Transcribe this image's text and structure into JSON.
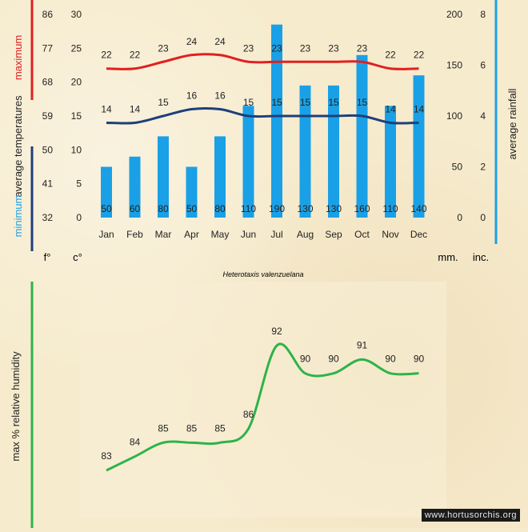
{
  "species": "Heterotaxis valenzuelana",
  "credit": "www.hortusorchis.org",
  "colors": {
    "max": "#e02020",
    "min": "#1e3f7a",
    "rain": "#1aa0e6",
    "humidity": "#2db34a",
    "text": "#222222"
  },
  "left_labels": {
    "max_word": "maximum",
    "avg_word": "average  temperatures",
    "min_word": "minimum",
    "unit_f": "f°",
    "unit_c": "c°"
  },
  "right_labels": {
    "axis_title": "average  rainfall",
    "unit_mm": "mm.",
    "unit_inc": "inc."
  },
  "humidity_labels": {
    "axis_title": "max %  relative humidity"
  },
  "chart_data": [
    {
      "type": "bar",
      "title": "Heterotaxis valenzuelana",
      "categories": [
        "Jan",
        "Feb",
        "Mar",
        "Apr",
        "May",
        "Jun",
        "Jul",
        "Aug",
        "Sep",
        "Oct",
        "Nov",
        "Dec"
      ],
      "series": [
        {
          "name": "average rainfall (mm)",
          "kind": "bar",
          "axis": "rain_mm",
          "values": [
            50,
            60,
            80,
            50,
            80,
            110,
            190,
            130,
            130,
            160,
            110,
            140
          ]
        },
        {
          "name": "maximum average temperature (°C)",
          "kind": "line",
          "axis": "temp_c",
          "values": [
            22,
            22,
            23,
            24,
            24,
            23,
            23,
            23,
            23,
            23,
            22,
            22
          ]
        },
        {
          "name": "minimum average temperature (°C)",
          "kind": "line",
          "axis": "temp_c",
          "values": [
            14,
            14,
            15,
            16,
            16,
            15,
            15,
            15,
            15,
            15,
            14,
            14
          ]
        }
      ],
      "axes": {
        "temp_f": {
          "ylim": [
            32,
            86
          ],
          "ticks": [
            86,
            77,
            68,
            59,
            50,
            41,
            32
          ]
        },
        "temp_c": {
          "ylim": [
            0,
            30
          ],
          "ticks": [
            30,
            25,
            20,
            15,
            10,
            5,
            0
          ]
        },
        "rain_mm": {
          "ylim": [
            0,
            200
          ],
          "ticks": [
            200,
            150,
            100,
            50,
            0
          ]
        },
        "rain_in": {
          "ylim": [
            0,
            8
          ],
          "ticks": [
            8,
            6,
            4,
            2,
            0
          ]
        }
      }
    },
    {
      "type": "line",
      "title": "",
      "ylabel": "max % relative humidity",
      "categories": [
        "Jan",
        "Feb",
        "Mar",
        "Apr",
        "May",
        "Jun",
        "Jul",
        "Aug",
        "Sep",
        "Oct",
        "Nov",
        "Dec"
      ],
      "values": [
        83,
        84,
        85,
        85,
        85,
        86,
        92,
        90,
        90,
        91,
        90,
        90
      ],
      "ylim": [
        80,
        95
      ]
    }
  ]
}
